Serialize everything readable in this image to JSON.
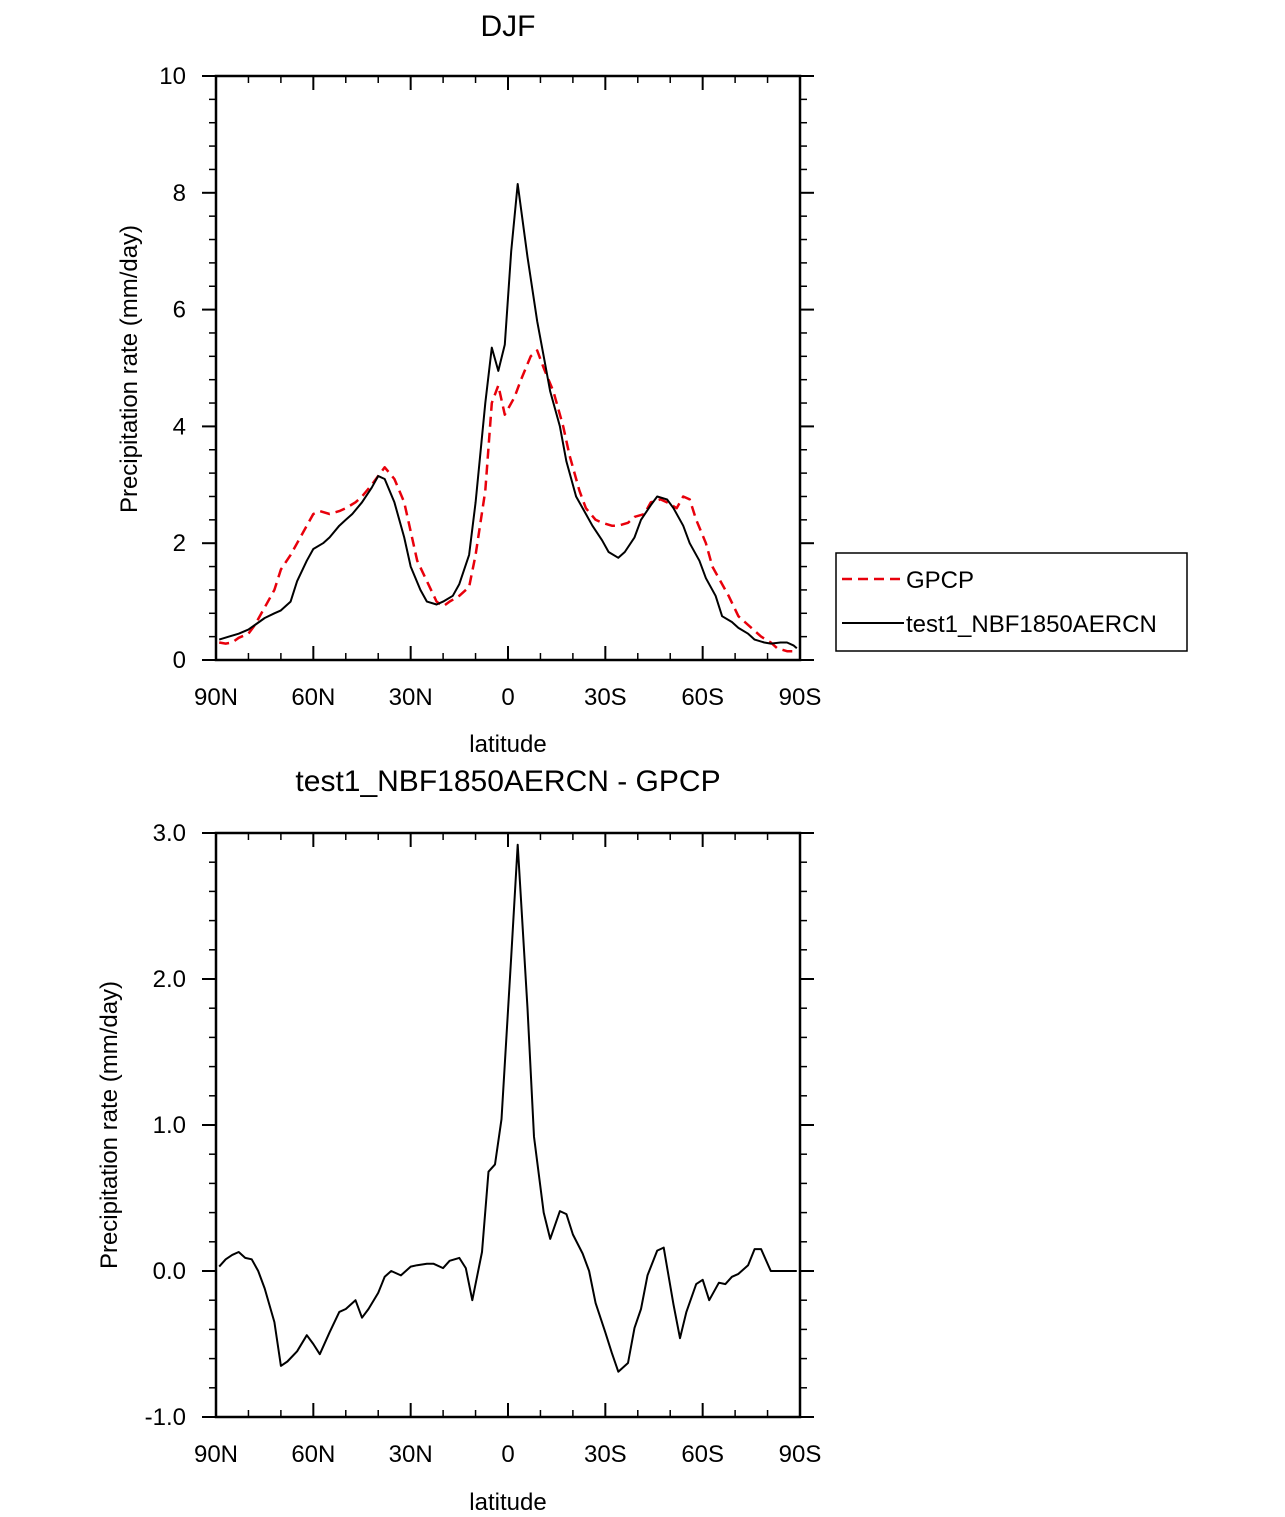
{
  "chart_data": [
    {
      "type": "line",
      "title": "DJF",
      "xlabel": "latitude",
      "ylabel": "Precipitation rate (mm/day)",
      "xlim": [
        -90,
        90
      ],
      "ylim": [
        0,
        10
      ],
      "x_ticks": [
        -90,
        -60,
        -30,
        0,
        30,
        60,
        90
      ],
      "x_tick_labels": [
        "90N",
        "60N",
        "30N",
        "0",
        "30S",
        "60S",
        "90S"
      ],
      "y_ticks": [
        0,
        2,
        4,
        6,
        8,
        10
      ],
      "y_tick_labels": [
        "0",
        "2",
        "4",
        "6",
        "8",
        "10"
      ],
      "legend_position": "right",
      "series": [
        {
          "name": "GPCP",
          "color": "#e8000b",
          "style": "dashed",
          "x": [
            -89,
            -87,
            -85,
            -83,
            -80,
            -78,
            -75,
            -72,
            -70,
            -67,
            -65,
            -62,
            -60,
            -58,
            -55,
            -52,
            -50,
            -47,
            -45,
            -42,
            -40,
            -38,
            -35,
            -32,
            -30,
            -28,
            -25,
            -22,
            -20,
            -18,
            -15,
            -12,
            -10,
            -7,
            -5,
            -3,
            -1,
            2,
            4,
            7,
            9,
            11,
            14,
            17,
            19,
            22,
            24,
            27,
            29,
            32,
            34,
            37,
            39,
            42,
            44,
            47,
            49,
            52,
            54,
            56,
            58,
            61,
            63,
            66,
            68,
            71,
            73,
            76,
            78,
            81,
            83,
            86,
            88,
            89
          ],
          "values": [
            0.3,
            0.28,
            0.3,
            0.38,
            0.45,
            0.6,
            0.9,
            1.2,
            1.55,
            1.8,
            2.0,
            2.3,
            2.5,
            2.55,
            2.5,
            2.55,
            2.6,
            2.7,
            2.8,
            3.0,
            3.15,
            3.3,
            3.1,
            2.7,
            2.2,
            1.7,
            1.35,
            1.0,
            0.92,
            1.0,
            1.1,
            1.25,
            1.8,
            2.9,
            4.4,
            4.7,
            4.2,
            4.5,
            4.8,
            5.2,
            5.3,
            5.0,
            4.6,
            4.0,
            3.5,
            2.9,
            2.6,
            2.4,
            2.35,
            2.3,
            2.3,
            2.35,
            2.45,
            2.5,
            2.7,
            2.75,
            2.7,
            2.6,
            2.8,
            2.75,
            2.4,
            2.0,
            1.6,
            1.3,
            1.1,
            0.75,
            0.65,
            0.5,
            0.4,
            0.3,
            0.2,
            0.15,
            0.15,
            0.15
          ]
        },
        {
          "name": "test1_NBF1850AERCN",
          "color": "#000000",
          "style": "solid",
          "x": [
            -89,
            -86,
            -83,
            -80,
            -78,
            -75,
            -72,
            -70,
            -67,
            -65,
            -62,
            -60,
            -57,
            -55,
            -52,
            -50,
            -48,
            -45,
            -42,
            -40,
            -38,
            -35,
            -32,
            -30,
            -27,
            -25,
            -22,
            -20,
            -17,
            -15,
            -12,
            -10,
            -7,
            -5,
            -3,
            -1,
            1,
            3,
            6,
            9,
            11,
            13,
            16,
            18,
            21,
            24,
            26,
            29,
            31,
            34,
            36,
            39,
            41,
            44,
            46,
            49,
            51,
            54,
            56,
            59,
            61,
            64,
            66,
            69,
            71,
            74,
            76,
            79,
            81,
            84,
            86,
            88,
            89
          ],
          "values": [
            0.35,
            0.4,
            0.45,
            0.52,
            0.6,
            0.72,
            0.8,
            0.85,
            1.0,
            1.35,
            1.7,
            1.9,
            2.0,
            2.1,
            2.3,
            2.4,
            2.5,
            2.7,
            2.95,
            3.15,
            3.1,
            2.7,
            2.1,
            1.6,
            1.2,
            1.0,
            0.95,
            1.0,
            1.1,
            1.3,
            1.8,
            2.7,
            4.4,
            5.35,
            4.95,
            5.4,
            7.0,
            8.15,
            6.9,
            5.8,
            5.2,
            4.6,
            4.0,
            3.4,
            2.8,
            2.5,
            2.3,
            2.05,
            1.85,
            1.75,
            1.85,
            2.1,
            2.4,
            2.65,
            2.8,
            2.75,
            2.6,
            2.3,
            2.0,
            1.7,
            1.4,
            1.1,
            0.75,
            0.65,
            0.55,
            0.45,
            0.35,
            0.3,
            0.28,
            0.3,
            0.3,
            0.25,
            0.2
          ]
        }
      ]
    },
    {
      "type": "line",
      "title": "test1_NBF1850AERCN - GPCP",
      "xlabel": "latitude",
      "ylabel": "Precipitation rate (mm/day)",
      "xlim": [
        -90,
        90
      ],
      "ylim": [
        -1.0,
        3.0
      ],
      "x_ticks": [
        -90,
        -60,
        -30,
        0,
        30,
        60,
        90
      ],
      "x_tick_labels": [
        "90N",
        "60N",
        "30N",
        "0",
        "30S",
        "60S",
        "90S"
      ],
      "y_ticks": [
        -1.0,
        0.0,
        1.0,
        2.0,
        3.0
      ],
      "y_tick_labels": [
        "-1.0",
        "0.0",
        "1.0",
        "2.0",
        "3.0"
      ],
      "series": [
        {
          "name": "test1_NBF1850AERCN - GPCP",
          "color": "#000000",
          "style": "solid",
          "x": [
            -89,
            -87,
            -85,
            -83,
            -81,
            -79,
            -77,
            -75,
            -72,
            -70,
            -68,
            -65,
            -62,
            -60,
            -58,
            -55,
            -52,
            -50,
            -47,
            -45,
            -43,
            -40,
            -38,
            -36,
            -33,
            -30,
            -28,
            -25,
            -23,
            -20,
            -18,
            -15,
            -13,
            -11,
            -8,
            -6,
            -4,
            -2,
            1,
            3,
            6,
            8,
            11,
            13,
            16,
            18,
            20,
            23,
            25,
            27,
            30,
            32,
            34,
            37,
            39,
            41,
            43,
            46,
            48,
            51,
            53,
            55,
            58,
            60,
            62,
            65,
            67,
            69,
            71,
            74,
            76,
            78,
            81,
            83,
            85,
            88,
            89
          ],
          "values": [
            0.03,
            0.08,
            0.11,
            0.13,
            0.09,
            0.08,
            0.0,
            -0.12,
            -0.35,
            -0.65,
            -0.62,
            -0.55,
            -0.44,
            -0.5,
            -0.57,
            -0.42,
            -0.28,
            -0.26,
            -0.2,
            -0.32,
            -0.26,
            -0.15,
            -0.04,
            0.0,
            -0.03,
            0.03,
            0.04,
            0.05,
            0.05,
            0.02,
            0.07,
            0.09,
            0.02,
            -0.2,
            0.13,
            0.68,
            0.73,
            1.04,
            2.15,
            2.92,
            1.8,
            0.92,
            0.4,
            0.22,
            0.41,
            0.39,
            0.25,
            0.12,
            0.0,
            -0.22,
            -0.42,
            -0.56,
            -0.69,
            -0.63,
            -0.39,
            -0.26,
            -0.03,
            0.14,
            0.16,
            -0.23,
            -0.46,
            -0.28,
            -0.09,
            -0.06,
            -0.2,
            -0.08,
            -0.09,
            -0.04,
            -0.02,
            0.04,
            0.15,
            0.15,
            0.0,
            0.0,
            0.0,
            0.0,
            0.0
          ]
        }
      ]
    }
  ]
}
